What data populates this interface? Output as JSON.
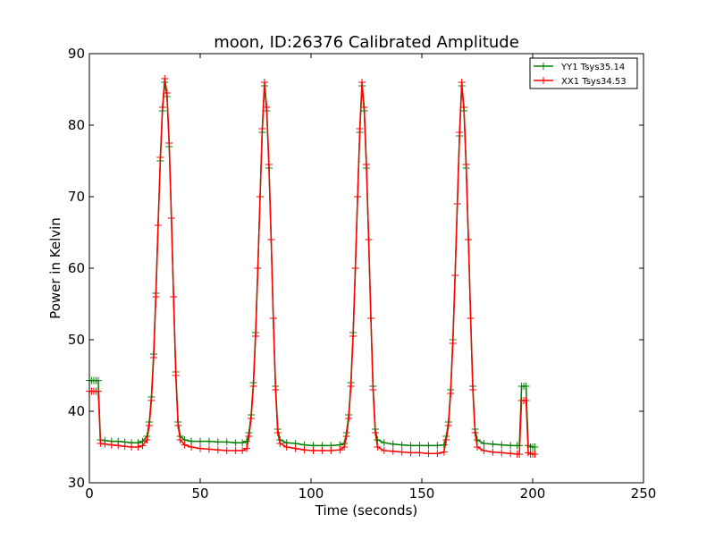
{
  "chart_data": {
    "type": "line",
    "title": "moon, ID:26376 Calibrated Amplitude",
    "xlabel": "Time (seconds)",
    "ylabel": "Power in Kelvin",
    "xlim": [
      0,
      250
    ],
    "ylim": [
      30,
      90
    ],
    "xticks": [
      "0",
      "50",
      "100",
      "150",
      "200",
      "250"
    ],
    "yticks": [
      "30",
      "40",
      "50",
      "60",
      "70",
      "80",
      "90"
    ],
    "legend_position": "top-right",
    "series": [
      {
        "name": "YY1 Tsys35.14",
        "color": "#008000",
        "marker": "plus",
        "points": [
          [
            0,
            44.3
          ],
          [
            1,
            44.3
          ],
          [
            2,
            44.3
          ],
          [
            3,
            44.3
          ],
          [
            4,
            44.3
          ],
          [
            5,
            36.0
          ],
          [
            7,
            35.9
          ],
          [
            10,
            35.8
          ],
          [
            13,
            35.8
          ],
          [
            16,
            35.7
          ],
          [
            19,
            35.6
          ],
          [
            22,
            35.6
          ],
          [
            24,
            35.8
          ],
          [
            26,
            36.5
          ],
          [
            27,
            38.5
          ],
          [
            28,
            42.0
          ],
          [
            29,
            48.0
          ],
          [
            30,
            56.5
          ],
          [
            31,
            66.0
          ],
          [
            32,
            75.0
          ],
          [
            33,
            82.0
          ],
          [
            34,
            86.0
          ],
          [
            35,
            84.0
          ],
          [
            36,
            77.0
          ],
          [
            37,
            67.0
          ],
          [
            38,
            56.0
          ],
          [
            39,
            45.5
          ],
          [
            40,
            38.5
          ],
          [
            41,
            36.5
          ],
          [
            43,
            36.0
          ],
          [
            46,
            35.8
          ],
          [
            50,
            35.8
          ],
          [
            54,
            35.8
          ],
          [
            58,
            35.7
          ],
          [
            62,
            35.7
          ],
          [
            66,
            35.6
          ],
          [
            69,
            35.6
          ],
          [
            71,
            35.8
          ],
          [
            72,
            37.0
          ],
          [
            73,
            39.5
          ],
          [
            74,
            44.0
          ],
          [
            75,
            51.0
          ],
          [
            76,
            60.0
          ],
          [
            77,
            70.0
          ],
          [
            78,
            79.0
          ],
          [
            79,
            85.5
          ],
          [
            80,
            82.0
          ],
          [
            81,
            74.0
          ],
          [
            82,
            64.0
          ],
          [
            83,
            53.0
          ],
          [
            84,
            43.5
          ],
          [
            85,
            37.5
          ],
          [
            86,
            36.0
          ],
          [
            89,
            35.6
          ],
          [
            93,
            35.5
          ],
          [
            97,
            35.3
          ],
          [
            101,
            35.2
          ],
          [
            105,
            35.2
          ],
          [
            109,
            35.2
          ],
          [
            113,
            35.3
          ],
          [
            115,
            35.5
          ],
          [
            116,
            37.0
          ],
          [
            117,
            39.5
          ],
          [
            118,
            44.0
          ],
          [
            119,
            51.0
          ],
          [
            120,
            60.0
          ],
          [
            121,
            70.0
          ],
          [
            122,
            79.0
          ],
          [
            123,
            85.5
          ],
          [
            124,
            82.0
          ],
          [
            125,
            74.0
          ],
          [
            126,
            64.0
          ],
          [
            127,
            53.0
          ],
          [
            128,
            43.5
          ],
          [
            129,
            37.5
          ],
          [
            130,
            36.0
          ],
          [
            133,
            35.6
          ],
          [
            137,
            35.4
          ],
          [
            141,
            35.3
          ],
          [
            145,
            35.2
          ],
          [
            149,
            35.2
          ],
          [
            153,
            35.2
          ],
          [
            157,
            35.2
          ],
          [
            160,
            35.3
          ],
          [
            161,
            36.5
          ],
          [
            162,
            38.5
          ],
          [
            163,
            43.0
          ],
          [
            164,
            50.0
          ],
          [
            165,
            59.0
          ],
          [
            166,
            69.0
          ],
          [
            167,
            78.5
          ],
          [
            168,
            85.5
          ],
          [
            169,
            82.0
          ],
          [
            170,
            74.0
          ],
          [
            171,
            64.0
          ],
          [
            172,
            53.0
          ],
          [
            173,
            43.5
          ],
          [
            174,
            37.5
          ],
          [
            175,
            36.0
          ],
          [
            178,
            35.5
          ],
          [
            182,
            35.4
          ],
          [
            186,
            35.3
          ],
          [
            190,
            35.2
          ],
          [
            193,
            35.2
          ],
          [
            194,
            35.2
          ],
          [
            195,
            43.5
          ],
          [
            196,
            43.5
          ],
          [
            197,
            43.5
          ],
          [
            198,
            35.2
          ],
          [
            199,
            35.0
          ],
          [
            200,
            35.0
          ],
          [
            201,
            35.0
          ]
        ]
      },
      {
        "name": "XX1 Tsys34.53",
        "color": "#ff0000",
        "marker": "plus",
        "points": [
          [
            0,
            42.8
          ],
          [
            1,
            42.8
          ],
          [
            2,
            42.8
          ],
          [
            3,
            42.8
          ],
          [
            4,
            42.8
          ],
          [
            5,
            35.5
          ],
          [
            7,
            35.4
          ],
          [
            10,
            35.3
          ],
          [
            13,
            35.2
          ],
          [
            16,
            35.1
          ],
          [
            19,
            35.0
          ],
          [
            22,
            35.0
          ],
          [
            24,
            35.2
          ],
          [
            26,
            36.0
          ],
          [
            27,
            38.0
          ],
          [
            28,
            41.5
          ],
          [
            29,
            47.5
          ],
          [
            30,
            56.0
          ],
          [
            31,
            66.0
          ],
          [
            32,
            75.5
          ],
          [
            33,
            82.5
          ],
          [
            34,
            86.5
          ],
          [
            35,
            84.5
          ],
          [
            36,
            77.5
          ],
          [
            37,
            67.0
          ],
          [
            38,
            56.0
          ],
          [
            39,
            45.0
          ],
          [
            40,
            38.0
          ],
          [
            41,
            36.0
          ],
          [
            43,
            35.3
          ],
          [
            46,
            35.0
          ],
          [
            50,
            34.8
          ],
          [
            54,
            34.7
          ],
          [
            58,
            34.6
          ],
          [
            62,
            34.5
          ],
          [
            66,
            34.5
          ],
          [
            69,
            34.5
          ],
          [
            71,
            34.8
          ],
          [
            72,
            36.5
          ],
          [
            73,
            39.0
          ],
          [
            74,
            43.5
          ],
          [
            75,
            50.5
          ],
          [
            76,
            60.0
          ],
          [
            77,
            70.0
          ],
          [
            78,
            79.5
          ],
          [
            79,
            86.0
          ],
          [
            80,
            82.5
          ],
          [
            81,
            74.5
          ],
          [
            82,
            64.0
          ],
          [
            83,
            53.0
          ],
          [
            84,
            43.0
          ],
          [
            85,
            37.0
          ],
          [
            86,
            35.5
          ],
          [
            89,
            35.0
          ],
          [
            93,
            34.8
          ],
          [
            97,
            34.6
          ],
          [
            101,
            34.5
          ],
          [
            105,
            34.5
          ],
          [
            109,
            34.5
          ],
          [
            113,
            34.6
          ],
          [
            115,
            35.0
          ],
          [
            116,
            36.5
          ],
          [
            117,
            39.0
          ],
          [
            118,
            43.5
          ],
          [
            119,
            50.5
          ],
          [
            120,
            60.0
          ],
          [
            121,
            70.0
          ],
          [
            122,
            79.5
          ],
          [
            123,
            86.0
          ],
          [
            124,
            82.5
          ],
          [
            125,
            74.5
          ],
          [
            126,
            64.0
          ],
          [
            127,
            53.0
          ],
          [
            128,
            43.0
          ],
          [
            129,
            37.0
          ],
          [
            130,
            35.0
          ],
          [
            133,
            34.5
          ],
          [
            137,
            34.4
          ],
          [
            141,
            34.3
          ],
          [
            145,
            34.2
          ],
          [
            149,
            34.2
          ],
          [
            153,
            34.1
          ],
          [
            157,
            34.1
          ],
          [
            160,
            34.3
          ],
          [
            161,
            36.0
          ],
          [
            162,
            38.0
          ],
          [
            163,
            42.5
          ],
          [
            164,
            49.5
          ],
          [
            165,
            59.0
          ],
          [
            166,
            69.0
          ],
          [
            167,
            79.0
          ],
          [
            168,
            86.0
          ],
          [
            169,
            82.5
          ],
          [
            170,
            74.5
          ],
          [
            171,
            64.0
          ],
          [
            172,
            53.0
          ],
          [
            173,
            43.0
          ],
          [
            174,
            37.0
          ],
          [
            175,
            35.0
          ],
          [
            178,
            34.5
          ],
          [
            182,
            34.3
          ],
          [
            186,
            34.2
          ],
          [
            190,
            34.1
          ],
          [
            193,
            34.0
          ],
          [
            194,
            34.0
          ],
          [
            195,
            41.5
          ],
          [
            196,
            41.5
          ],
          [
            197,
            41.5
          ],
          [
            198,
            34.2
          ],
          [
            199,
            34.0
          ],
          [
            200,
            34.0
          ],
          [
            201,
            34.0
          ]
        ]
      }
    ]
  }
}
